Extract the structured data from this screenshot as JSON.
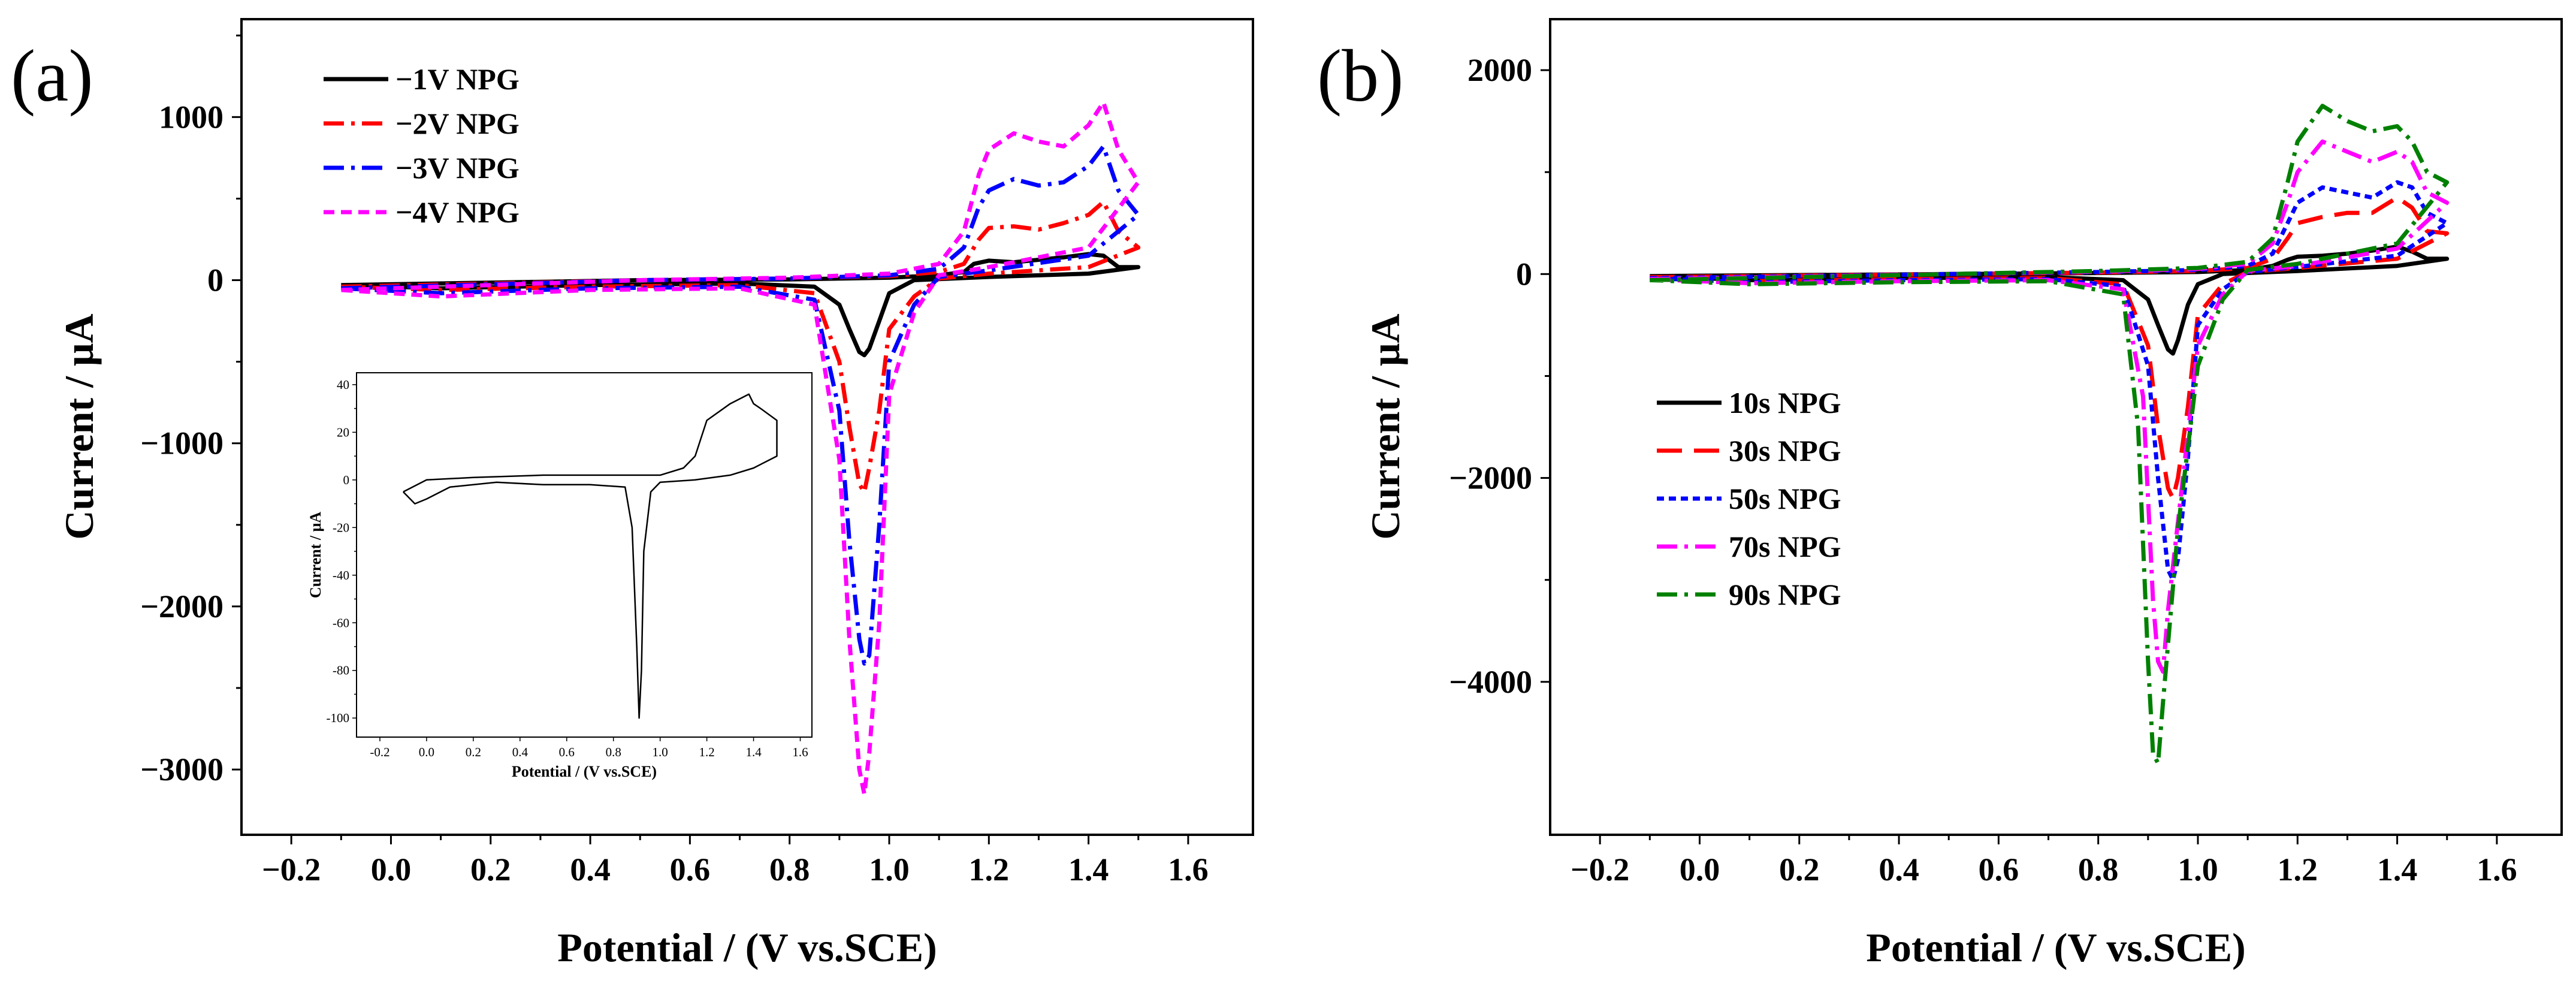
{
  "panel_labels": [
    "(a)",
    "(b)"
  ],
  "chart_data": [
    {
      "id": "a",
      "type": "line",
      "title": "",
      "xlabel_main": "Potential / ",
      "xlabel_unit": "(V vs.SCE)",
      "ylabel": "Current / μA",
      "xlim": [
        -0.3,
        1.73
      ],
      "ylim": [
        -3400,
        1600
      ],
      "xticks": [
        -0.2,
        0.0,
        0.2,
        0.4,
        0.6,
        0.8,
        1.0,
        1.2,
        1.4,
        1.6
      ],
      "xtick_labels": [
        "−0.2",
        "0.0",
        "0.2",
        "0.4",
        "0.6",
        "0.8",
        "1.0",
        "1.2",
        "1.4",
        "1.6"
      ],
      "yticks": [
        -3000,
        -2000,
        -1000,
        0,
        1000
      ],
      "ytick_labels": [
        "−3000",
        "−2000",
        "−1000",
        "0",
        "1000"
      ],
      "legend_position": "top-left",
      "series": [
        {
          "name": "−1V NPG",
          "color": "#000000",
          "style": "solid",
          "forward": {
            "x": [
              -0.1,
              0.2,
              0.5,
              0.8,
              1.0,
              1.1,
              1.15,
              1.17,
              1.2,
              1.25,
              1.3,
              1.35,
              1.4,
              1.43,
              1.46,
              1.5
            ],
            "y": [
              -30,
              -15,
              0,
              5,
              15,
              30,
              50,
              100,
              120,
              110,
              125,
              140,
              160,
              150,
              80,
              80
            ]
          },
          "backward": {
            "x": [
              1.5,
              1.4,
              1.2,
              1.05,
              1.0,
              0.98,
              0.96,
              0.95,
              0.94,
              0.92,
              0.9,
              0.85,
              0.7,
              0.4,
              0.1,
              -0.1
            ],
            "y": [
              80,
              40,
              20,
              0,
              -80,
              -250,
              -420,
              -460,
              -440,
              -300,
              -150,
              -40,
              -20,
              -30,
              -50,
              -30
            ]
          }
        },
        {
          "name": "−2V NPG",
          "color": "#ff0000",
          "style": "dashdot",
          "forward": {
            "x": [
              -0.1,
              0.2,
              0.5,
              0.8,
              1.0,
              1.1,
              1.15,
              1.18,
              1.2,
              1.25,
              1.3,
              1.35,
              1.4,
              1.43,
              1.46,
              1.5
            ],
            "y": [
              -40,
              -20,
              0,
              10,
              25,
              50,
              100,
              250,
              320,
              330,
              310,
              350,
              400,
              480,
              300,
              200
            ]
          },
          "backward": {
            "x": [
              1.5,
              1.4,
              1.2,
              1.1,
              1.05,
              1.0,
              0.98,
              0.96,
              0.95,
              0.94,
              0.92,
              0.9,
              0.85,
              0.7,
              0.4,
              0.1,
              -0.1
            ],
            "y": [
              200,
              80,
              40,
              10,
              -100,
              -300,
              -800,
              -1150,
              -1300,
              -1250,
              -900,
              -500,
              -80,
              -30,
              -40,
              -60,
              -40
            ]
          }
        },
        {
          "name": "−3V NPG",
          "color": "#0000ff",
          "style": "dashdot",
          "forward": {
            "x": [
              -0.1,
              0.2,
              0.5,
              0.8,
              1.0,
              1.1,
              1.15,
              1.18,
              1.2,
              1.25,
              1.3,
              1.35,
              1.4,
              1.43,
              1.46,
              1.5
            ],
            "y": [
              -50,
              -25,
              0,
              10,
              30,
              70,
              200,
              450,
              550,
              620,
              580,
              600,
              700,
              820,
              550,
              400
            ]
          },
          "backward": {
            "x": [
              1.5,
              1.4,
              1.2,
              1.1,
              1.05,
              1.0,
              0.98,
              0.96,
              0.95,
              0.94,
              0.92,
              0.9,
              0.85,
              0.7,
              0.4,
              0.1,
              -0.1
            ],
            "y": [
              400,
              150,
              60,
              20,
              -150,
              -500,
              -1500,
              -2300,
              -2350,
              -2200,
              -1600,
              -800,
              -120,
              -40,
              -50,
              -80,
              -50
            ]
          }
        },
        {
          "name": "−4V NPG",
          "color": "#ff00ff",
          "style": "dashed",
          "forward": {
            "x": [
              -0.1,
              0.2,
              0.5,
              0.8,
              1.0,
              1.1,
              1.15,
              1.18,
              1.2,
              1.25,
              1.3,
              1.35,
              1.4,
              1.43,
              1.46,
              1.5
            ],
            "y": [
              -60,
              -30,
              0,
              15,
              40,
              100,
              300,
              650,
              800,
              900,
              850,
              820,
              950,
              1090,
              800,
              600
            ]
          },
          "backward": {
            "x": [
              1.5,
              1.4,
              1.2,
              1.1,
              1.05,
              1.0,
              0.98,
              0.96,
              0.95,
              0.94,
              0.92,
              0.9,
              0.85,
              0.7,
              0.4,
              0.1,
              -0.1
            ],
            "y": [
              600,
              200,
              80,
              30,
              -200,
              -700,
              -2100,
              -2900,
              -3150,
              -3000,
              -2200,
              -1100,
              -150,
              -50,
              -60,
              -100,
              -60
            ]
          }
        }
      ],
      "inset": {
        "type": "line",
        "xlabel": "Potential / (V vs.SCE)",
        "ylabel": "Current / μA",
        "xlim": [
          -0.3,
          1.65
        ],
        "ylim": [
          -108,
          45
        ],
        "xticks": [
          -0.2,
          0.0,
          0.2,
          0.4,
          0.6,
          0.8,
          1.0,
          1.2,
          1.4,
          1.6
        ],
        "xtick_labels": [
          "-0.2",
          "0.0",
          "0.2",
          "0.4",
          "0.6",
          "0.8",
          "1.0",
          "1.2",
          "1.4",
          "1.6"
        ],
        "yticks": [
          40,
          20,
          0,
          -20,
          -40,
          -60,
          -80,
          -100
        ],
        "ytick_labels": [
          "40",
          "20",
          "0",
          "-20",
          "-40",
          "-60",
          "-80",
          "-100"
        ],
        "color": "#000000",
        "x": [
          -0.1,
          0.0,
          0.2,
          0.5,
          0.8,
          1.0,
          1.1,
          1.15,
          1.2,
          1.3,
          1.38,
          1.4,
          1.43,
          1.5,
          1.5,
          1.4,
          1.3,
          1.15,
          1.0,
          0.96,
          0.93,
          0.92,
          0.91,
          0.9,
          0.88,
          0.85,
          0.7,
          0.5,
          0.3,
          0.1,
          0.0,
          -0.05,
          -0.1
        ],
        "y": [
          -5,
          0,
          1,
          2,
          2,
          2,
          5,
          10,
          25,
          32,
          36,
          32,
          30,
          25,
          10,
          5,
          2,
          0,
          -1,
          -5,
          -30,
          -80,
          -100,
          -70,
          -20,
          -3,
          -2,
          -2,
          -1,
          -3,
          -8,
          -10,
          -5
        ]
      }
    },
    {
      "id": "b",
      "type": "line",
      "title": "",
      "xlabel_main": "Potential / ",
      "xlabel_unit": "(V vs.SCE)",
      "ylabel": "Current / μA",
      "xlim": [
        -0.3,
        1.73
      ],
      "ylim": [
        -5500,
        2500
      ],
      "xticks": [
        -0.2,
        0.0,
        0.2,
        0.4,
        0.6,
        0.8,
        1.0,
        1.2,
        1.4,
        1.6
      ],
      "xtick_labels": [
        "−0.2",
        "0.0",
        "0.2",
        "0.4",
        "0.6",
        "0.8",
        "1.0",
        "1.2",
        "1.4",
        "1.6"
      ],
      "yticks": [
        -4000,
        -2000,
        0,
        2000
      ],
      "ytick_labels": [
        "−4000",
        "−2000",
        "0",
        "2000"
      ],
      "legend_position": "center-left",
      "series": [
        {
          "name": "10s NPG",
          "color": "#000000",
          "style": "solid",
          "forward": {
            "x": [
              -0.1,
              0.2,
              0.5,
              0.8,
              1.0,
              1.1,
              1.15,
              1.18,
              1.2,
              1.25,
              1.3,
              1.35,
              1.4,
              1.43,
              1.46,
              1.5
            ],
            "y": [
              -20,
              -10,
              0,
              10,
              20,
              40,
              80,
              140,
              170,
              180,
              200,
              230,
              270,
              220,
              150,
              150
            ]
          },
          "backward": {
            "x": [
              1.5,
              1.4,
              1.2,
              1.05,
              1.0,
              0.98,
              0.96,
              0.95,
              0.94,
              0.92,
              0.9,
              0.85,
              0.7,
              0.4,
              0.1,
              -0.1
            ],
            "y": [
              150,
              80,
              30,
              0,
              -100,
              -300,
              -650,
              -780,
              -740,
              -500,
              -250,
              -60,
              -30,
              -40,
              -60,
              -20
            ]
          }
        },
        {
          "name": "30s NPG",
          "color": "#ff0000",
          "style": "longdash",
          "forward": {
            "x": [
              -0.1,
              0.2,
              0.5,
              0.8,
              1.0,
              1.1,
              1.15,
              1.18,
              1.2,
              1.25,
              1.3,
              1.35,
              1.4,
              1.43,
              1.46,
              1.5
            ],
            "y": [
              -30,
              -15,
              0,
              15,
              30,
              60,
              150,
              350,
              500,
              560,
              600,
              600,
              750,
              650,
              420,
              400
            ]
          },
          "backward": {
            "x": [
              1.5,
              1.4,
              1.2,
              1.1,
              1.05,
              1.0,
              0.98,
              0.96,
              0.95,
              0.94,
              0.92,
              0.9,
              0.85,
              0.7,
              0.4,
              0.1,
              -0.1
            ],
            "y": [
              400,
              150,
              60,
              20,
              -100,
              -400,
              -1300,
              -2000,
              -2200,
              -2100,
              -1500,
              -700,
              -100,
              -40,
              -50,
              -70,
              -30
            ]
          }
        },
        {
          "name": "50s NPG",
          "color": "#0000ff",
          "style": "dotted",
          "forward": {
            "x": [
              -0.1,
              0.2,
              0.5,
              0.8,
              1.0,
              1.1,
              1.15,
              1.18,
              1.2,
              1.25,
              1.3,
              1.35,
              1.4,
              1.43,
              1.46,
              1.5
            ],
            "y": [
              -40,
              -20,
              0,
              20,
              40,
              80,
              200,
              500,
              700,
              850,
              800,
              750,
              900,
              850,
              600,
              500
            ]
          },
          "backward": {
            "x": [
              1.5,
              1.4,
              1.2,
              1.1,
              1.05,
              1.0,
              0.98,
              0.96,
              0.95,
              0.94,
              0.92,
              0.9,
              0.85,
              0.7,
              0.4,
              0.1,
              -0.1
            ],
            "y": [
              500,
              180,
              70,
              20,
              -150,
              -500,
              -1800,
              -2800,
              -3000,
              -2900,
              -2000,
              -900,
              -120,
              -50,
              -60,
              -80,
              -40
            ]
          }
        },
        {
          "name": "70s NPG",
          "color": "#ff00ff",
          "style": "dashdot",
          "forward": {
            "x": [
              -0.1,
              0.2,
              0.5,
              0.8,
              1.0,
              1.1,
              1.15,
              1.18,
              1.2,
              1.25,
              1.3,
              1.35,
              1.4,
              1.43,
              1.46,
              1.5
            ],
            "y": [
              -50,
              -25,
              0,
              25,
              50,
              100,
              300,
              700,
              1000,
              1300,
              1200,
              1100,
              1200,
              1100,
              800,
              700
            ]
          },
          "backward": {
            "x": [
              1.5,
              1.4,
              1.2,
              1.1,
              1.05,
              1.0,
              0.97,
              0.94,
              0.93,
              0.92,
              0.91,
              0.89,
              0.85,
              0.7,
              0.4,
              0.1,
              -0.1
            ],
            "y": [
              700,
              250,
              80,
              30,
              -200,
              -700,
              -2000,
              -3300,
              -3900,
              -3800,
              -3200,
              -1200,
              -150,
              -60,
              -70,
              -90,
              -50
            ]
          }
        },
        {
          "name": "90s NPG",
          "color": "#008000",
          "style": "dashdot",
          "forward": {
            "x": [
              -0.1,
              0.2,
              0.5,
              0.8,
              1.0,
              1.1,
              1.15,
              1.18,
              1.2,
              1.25,
              1.3,
              1.35,
              1.4,
              1.43,
              1.46,
              1.5
            ],
            "y": [
              -60,
              -30,
              0,
              30,
              60,
              120,
              350,
              900,
              1300,
              1650,
              1500,
              1400,
              1450,
              1300,
              1000,
              900
            ]
          },
          "backward": {
            "x": [
              1.5,
              1.4,
              1.2,
              1.1,
              1.05,
              1.0,
              0.96,
              0.93,
              0.92,
              0.91,
              0.9,
              0.88,
              0.85,
              0.7,
              0.4,
              0.1,
              -0.1
            ],
            "y": [
              900,
              300,
              100,
              40,
              -250,
              -900,
              -2500,
              -4200,
              -4800,
              -4700,
              -3800,
              -1500,
              -200,
              -70,
              -80,
              -100,
              -60
            ]
          }
        }
      ]
    }
  ]
}
